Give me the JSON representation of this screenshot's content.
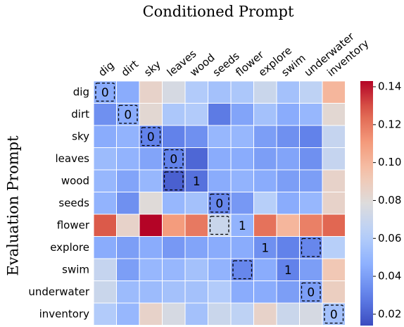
{
  "chart_data": {
    "type": "heatmap",
    "title": "Conditioned Prompt",
    "ylabel": "Evaluation Prompt",
    "x_categories": [
      "dig",
      "dirt",
      "sky",
      "leaves",
      "wood",
      "seeds",
      "flower",
      "explore",
      "swim",
      "underwater",
      "inventory"
    ],
    "y_categories": [
      "dig",
      "dirt",
      "sky",
      "leaves",
      "wood",
      "seeds",
      "flower",
      "explore",
      "swim",
      "underwater",
      "inventory"
    ],
    "values": [
      [
        0.045,
        0.045,
        0.085,
        0.075,
        0.06,
        0.055,
        0.058,
        0.07,
        0.055,
        0.065,
        0.1
      ],
      [
        0.035,
        0.045,
        0.082,
        0.058,
        0.06,
        0.028,
        0.042,
        0.055,
        0.045,
        0.05,
        0.082
      ],
      [
        0.045,
        0.048,
        0.03,
        0.03,
        0.035,
        0.05,
        0.05,
        0.04,
        0.035,
        0.03,
        0.068
      ],
      [
        0.052,
        0.048,
        0.042,
        0.03,
        0.022,
        0.045,
        0.045,
        0.04,
        0.042,
        0.035,
        0.068
      ],
      [
        0.05,
        0.042,
        0.05,
        0.02,
        0.025,
        0.045,
        0.048,
        0.045,
        0.04,
        0.04,
        0.085
      ],
      [
        0.048,
        0.035,
        0.08,
        0.05,
        0.055,
        0.032,
        0.038,
        0.062,
        0.045,
        0.05,
        0.085
      ],
      [
        0.128,
        0.085,
        0.143,
        0.11,
        0.12,
        0.07,
        0.048,
        0.122,
        0.1,
        0.118,
        0.125
      ],
      [
        0.045,
        0.04,
        0.045,
        0.038,
        0.042,
        0.045,
        0.045,
        0.035,
        0.03,
        0.032,
        0.062
      ],
      [
        0.068,
        0.04,
        0.05,
        0.05,
        0.055,
        0.048,
        0.032,
        0.045,
        0.03,
        0.04,
        0.092
      ],
      [
        0.07,
        0.052,
        0.052,
        0.055,
        0.055,
        0.06,
        0.045,
        0.045,
        0.04,
        0.04,
        0.088
      ],
      [
        0.06,
        0.05,
        0.085,
        0.075,
        0.055,
        0.07,
        0.065,
        0.085,
        0.07,
        0.075,
        0.055
      ]
    ],
    "cell_labels": [
      [
        "0",
        null,
        null,
        null,
        null,
        null,
        null,
        null,
        null,
        null,
        null
      ],
      [
        null,
        "0",
        null,
        null,
        null,
        null,
        null,
        null,
        null,
        null,
        null
      ],
      [
        null,
        null,
        "0",
        null,
        null,
        null,
        null,
        null,
        null,
        null,
        null
      ],
      [
        null,
        null,
        null,
        "0",
        null,
        null,
        null,
        null,
        null,
        null,
        null
      ],
      [
        null,
        null,
        null,
        null,
        "1",
        null,
        null,
        null,
        null,
        null,
        null
      ],
      [
        null,
        null,
        null,
        null,
        null,
        "0",
        null,
        null,
        null,
        null,
        null
      ],
      [
        null,
        null,
        null,
        null,
        null,
        null,
        "1",
        null,
        null,
        null,
        null
      ],
      [
        null,
        null,
        null,
        null,
        null,
        null,
        null,
        "1",
        null,
        null,
        null
      ],
      [
        null,
        null,
        null,
        null,
        null,
        null,
        null,
        null,
        "1",
        null,
        null
      ],
      [
        null,
        null,
        null,
        null,
        null,
        null,
        null,
        null,
        null,
        "0",
        null
      ],
      [
        null,
        null,
        null,
        null,
        null,
        null,
        null,
        null,
        null,
        null,
        "0"
      ]
    ],
    "boxes": [
      [
        0,
        0
      ],
      [
        1,
        1
      ],
      [
        2,
        2
      ],
      [
        3,
        3
      ],
      [
        4,
        3
      ],
      [
        5,
        5
      ],
      [
        6,
        5
      ],
      [
        7,
        9
      ],
      [
        8,
        6
      ],
      [
        9,
        9
      ],
      [
        10,
        10
      ]
    ],
    "colormap": "coolwarm",
    "vlim": [
      0.014,
      0.143
    ],
    "cticks": [
      0.02,
      0.04,
      0.06,
      0.08,
      {
        "value": 0.1,
        "label": "0.10"
      },
      0.12,
      0.14
    ]
  }
}
